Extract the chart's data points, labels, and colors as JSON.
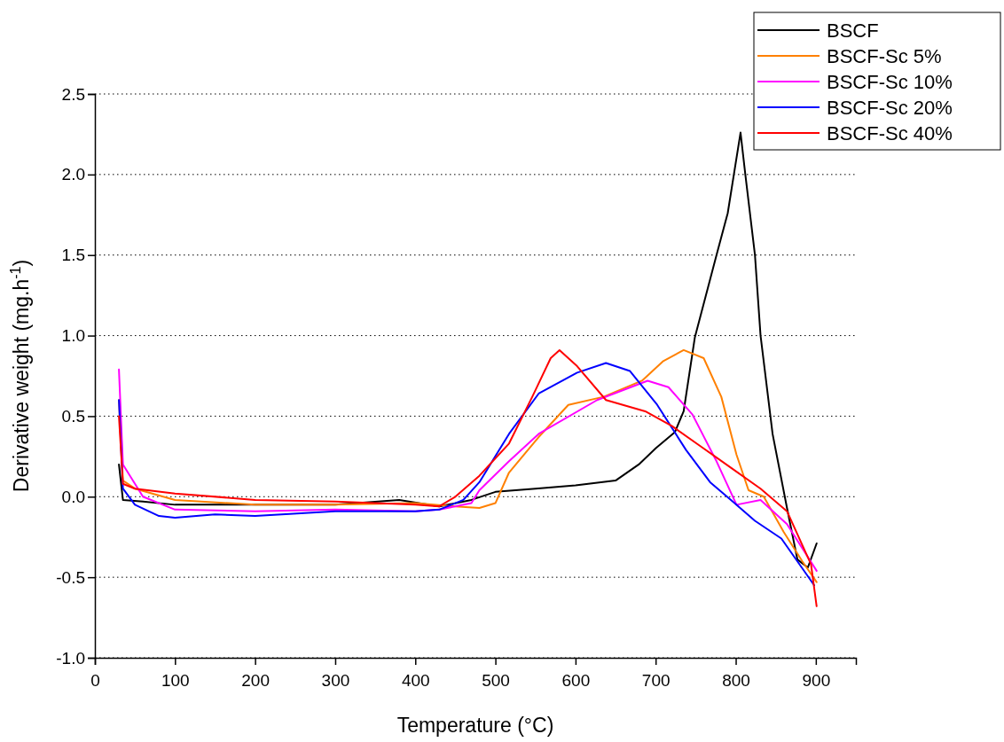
{
  "chart_data": {
    "type": "line",
    "xlabel": "Temperature (°C)",
    "ylabel": "Derivative weight (mg.h$^{-1}$)",
    "xlim": [
      0,
      950
    ],
    "ylim": [
      -1.0,
      2.5
    ],
    "xticks": [
      0,
      100,
      200,
      300,
      400,
      500,
      600,
      700,
      800,
      900
    ],
    "yticks": [
      {
        "value": -1,
        "label": "-1.0"
      },
      {
        "value": -0.5,
        "label": "-0.5"
      },
      {
        "value": 0,
        "label": "0.0"
      },
      {
        "value": 0.5,
        "label": "0.5"
      },
      {
        "value": 1,
        "label": "1.0"
      },
      {
        "value": 1.5,
        "label": "1.5"
      },
      {
        "value": 2,
        "label": "2.0"
      },
      {
        "value": 2.5,
        "label": "2.5"
      }
    ],
    "grid": "y",
    "legend": "top right",
    "line_style": "solid",
    "marker": "none",
    "series": [
      {
        "name": "BSCF",
        "color": "#000000",
        "x": [
          30,
          35,
          60,
          100,
          200,
          300,
          380,
          430,
          470,
          500,
          550,
          600,
          650,
          679,
          700,
          724,
          735,
          749,
          776,
          790,
          806,
          812,
          824,
          831,
          846,
          864,
          877,
          890,
          901
        ],
        "values": [
          0.2,
          -0.02,
          -0.03,
          -0.05,
          -0.05,
          -0.05,
          -0.02,
          -0.06,
          -0.02,
          0.03,
          0.05,
          0.07,
          0.1,
          0.2,
          0.3,
          0.4,
          0.53,
          0.99,
          1.5,
          1.76,
          2.26,
          2.0,
          1.5,
          1.0,
          0.39,
          -0.07,
          -0.39,
          -0.44,
          -0.29
        ]
      },
      {
        "name": "BSCF-Sc 5%",
        "color": "#ff8000",
        "x": [
          30,
          35,
          50,
          100,
          200,
          300,
          400,
          450,
          480,
          500,
          517,
          554,
          591,
          635,
          683,
          709,
          735,
          760,
          782,
          801,
          816,
          835,
          860,
          883,
          901
        ],
        "values": [
          0.6,
          0.1,
          0.05,
          -0.02,
          -0.05,
          -0.05,
          -0.04,
          -0.06,
          -0.07,
          -0.04,
          0.15,
          0.37,
          0.57,
          0.62,
          0.72,
          0.84,
          0.91,
          0.86,
          0.62,
          0.26,
          0.04,
          0.0,
          -0.22,
          -0.4,
          -0.53
        ]
      },
      {
        "name": "BSCF-Sc 10%",
        "color": "#ff00ff",
        "x": [
          30,
          35,
          45,
          60,
          100,
          200,
          300,
          400,
          430,
          470,
          480,
          517,
          554,
          627,
          690,
          716,
          746,
          776,
          801,
          831,
          864,
          901
        ],
        "values": [
          0.79,
          0.2,
          0.12,
          0.0,
          -0.08,
          -0.09,
          -0.08,
          -0.09,
          -0.08,
          -0.04,
          0.04,
          0.22,
          0.39,
          0.6,
          0.72,
          0.68,
          0.51,
          0.22,
          -0.05,
          -0.02,
          -0.17,
          -0.46
        ]
      },
      {
        "name": "BSCF-Sc 20%",
        "color": "#0000ff",
        "x": [
          30,
          35,
          50,
          80,
          100,
          150,
          200,
          300,
          400,
          430,
          460,
          480,
          517,
          554,
          602,
          638,
          668,
          702,
          738,
          768,
          794,
          824,
          857,
          898
        ],
        "values": [
          0.6,
          0.05,
          -0.05,
          -0.12,
          -0.13,
          -0.11,
          -0.12,
          -0.09,
          -0.09,
          -0.08,
          -0.02,
          0.09,
          0.39,
          0.64,
          0.77,
          0.83,
          0.78,
          0.57,
          0.29,
          0.09,
          -0.02,
          -0.15,
          -0.26,
          -0.55
        ]
      },
      {
        "name": "BSCF-Sc 40%",
        "color": "#ff0000",
        "x": [
          30,
          35,
          50,
          100,
          200,
          300,
          400,
          430,
          450,
          480,
          517,
          546,
          569,
          580,
          602,
          638,
          687,
          720,
          757,
          794,
          831,
          864,
          894,
          901
        ],
        "values": [
          0.5,
          0.08,
          0.05,
          0.02,
          -0.02,
          -0.03,
          -0.05,
          -0.06,
          0.0,
          0.13,
          0.33,
          0.62,
          0.86,
          0.91,
          0.81,
          0.6,
          0.53,
          0.44,
          0.31,
          0.18,
          0.05,
          -0.09,
          -0.42,
          -0.68
        ]
      }
    ]
  }
}
